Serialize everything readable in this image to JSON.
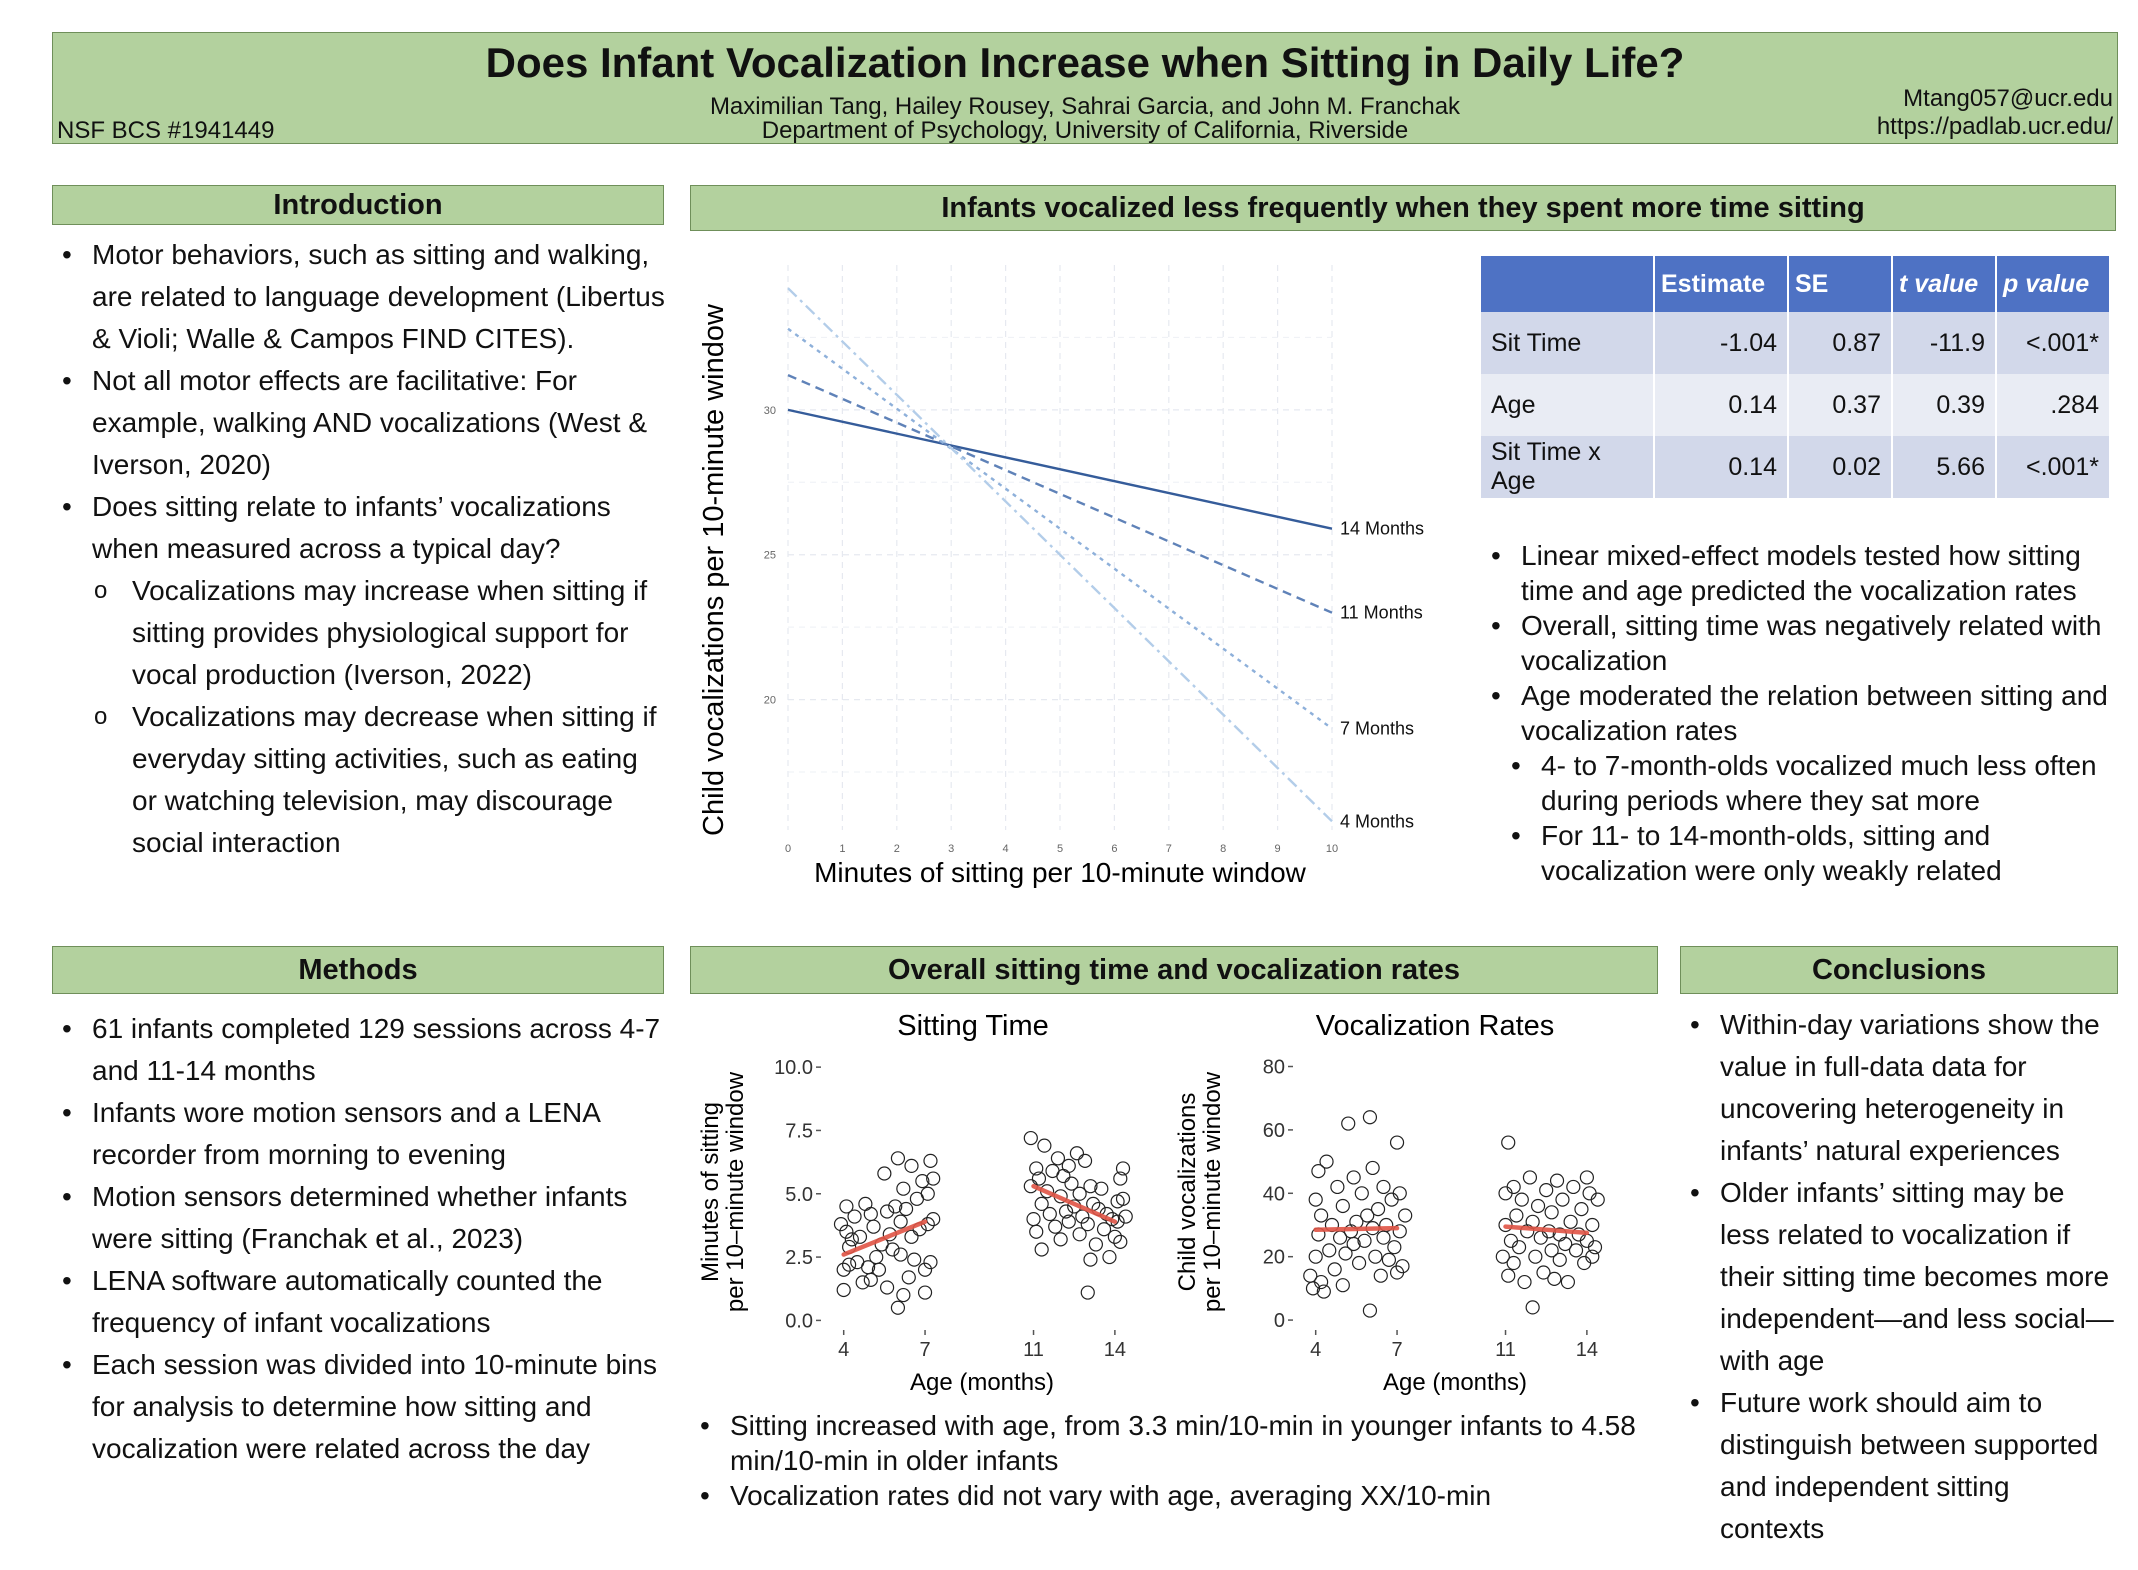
{
  "banner": {
    "title": "Does Infant Vocalization Increase when Sitting in Daily Life?",
    "authors": "Maximilian Tang, Hailey Rousey, Sahrai Garcia, and John M. Franchak",
    "affiliation": "Department of Psychology, University of California, Riverside",
    "grant": "NSF BCS #1941449",
    "email": "Mtang057@ucr.edu",
    "url": "https://padlab.ucr.edu/"
  },
  "intro": {
    "heading": "Introduction",
    "bullets": [
      "Motor behaviors, such as sitting and walking, are related to language development (Libertus & Violi; Walle & Campos FIND CITES).",
      "Not all motor effects are facilitative: For example, walking AND vocalizations (West & Iverson, 2020)",
      "Does sitting relate to infants’ vocalizations when measured across a typical day?"
    ],
    "subbullets": [
      "Vocalizations may increase when sitting if sitting provides physiological support for vocal production (Iverson, 2022)",
      "Vocalizations may decrease when sitting if everyday sitting activities, such as eating or watching television, may discourage social interaction"
    ]
  },
  "methods": {
    "heading": "Methods",
    "bullets": [
      "61 infants completed 129 sessions across 4-7 and 11-14 months",
      "Infants wore motion sensors and a LENA recorder from morning to evening",
      "Motion sensors determined whether infants were sitting (Franchak et al., 2023)",
      "LENA software automatically counted the frequency of infant vocalizations",
      "Each session was divided into 10-minute bins for analysis to determine how sitting and vocalization were related across the day"
    ]
  },
  "results1": {
    "heading": "Infants vocalized less frequently when they spent more time sitting",
    "table": {
      "headers": [
        "",
        "Estimate",
        "SE",
        "t value",
        "p value"
      ],
      "rows": [
        [
          "Sit Time",
          "-1.04",
          "0.87",
          "-11.9",
          "<.001*"
        ],
        [
          "Age",
          "0.14",
          "0.37",
          "0.39",
          ".284"
        ],
        [
          "Sit Time x Age",
          "0.14",
          "0.02",
          "5.66",
          "<.001*"
        ]
      ]
    },
    "bullets": [
      "Linear mixed-effect models tested how sitting time and age predicted the vocalization rates",
      "Overall, sitting time was negatively related with vocalization",
      "Age moderated the relation between sitting and vocalization rates"
    ],
    "subbullets": [
      "4- to 7-month-olds vocalized much less often during periods where they sat more",
      "For 11- to 14-month-olds, sitting and vocalization were only weakly related"
    ]
  },
  "results2": {
    "heading": "Overall sitting time and vocalization rates",
    "bullets": [
      "Sitting increased with age, from 3.3 min/10-min in younger infants to 4.58 min/10-min in older infants",
      "Vocalization rates did not vary with age, averaging XX/10-min"
    ]
  },
  "conclusions": {
    "heading": "Conclusions",
    "bullets": [
      "Within-day variations show the value in full-data data for uncovering heterogeneity in infants’ natural experiences",
      "Older infants’ sitting may be less related to vocalization if their sitting time becomes more independent—and less social—with age",
      "Future work should aim to distinguish between supported and independent sitting contexts"
    ]
  },
  "chart_data": [
    {
      "type": "line",
      "title": "",
      "xlabel": "Minutes of sitting per 10-minute window",
      "ylabel": "Child vocalizations per 10-minute window",
      "xlim": [
        0,
        10
      ],
      "ylim": [
        15.5,
        35
      ],
      "xticks": [
        0,
        1,
        2,
        3,
        4,
        5,
        6,
        7,
        8,
        9,
        10
      ],
      "yticks": [
        20,
        25,
        30
      ],
      "grid": true,
      "series": [
        {
          "name": "14 Months",
          "x": [
            0,
            10
          ],
          "y": [
            30.0,
            25.9
          ],
          "color": "#355c9a",
          "dash": ""
        },
        {
          "name": "11 Months",
          "x": [
            0,
            10
          ],
          "y": [
            31.2,
            23.0
          ],
          "color": "#5f82b8",
          "dash": "9,6"
        },
        {
          "name": "7 Months",
          "x": [
            0,
            10
          ],
          "y": [
            32.8,
            19.0
          ],
          "color": "#8eb0da",
          "dash": "4,5"
        },
        {
          "name": "4 Months",
          "x": [
            0,
            10
          ],
          "y": [
            34.2,
            15.8
          ],
          "color": "#b3cde9",
          "dash": "12,5,3,5"
        }
      ]
    },
    {
      "type": "scatter",
      "title": "Sitting Time",
      "xlabel": "Age (months)",
      "ylabel": "Minutes of sitting per 10–minute window",
      "ylabel_lines": [
        "Minutes of sitting",
        "per 10–minute window"
      ],
      "xlim": [
        3.2,
        15.0
      ],
      "ylim": [
        -0.3,
        10.4
      ],
      "xticks": [
        4,
        7,
        11,
        14
      ],
      "yticks": [
        0.0,
        2.5,
        5.0,
        7.5,
        10.0
      ],
      "ytick_labels": [
        "0.0",
        "2.5",
        "5.0",
        "7.5",
        "10.0"
      ],
      "trend": [
        {
          "x": [
            4,
            7
          ],
          "y": [
            2.6,
            3.9
          ]
        },
        {
          "x": [
            11,
            14
          ],
          "y": [
            5.3,
            3.9
          ]
        }
      ],
      "points": [
        [
          3.9,
          3.8
        ],
        [
          4.0,
          1.2
        ],
        [
          4.0,
          2.0
        ],
        [
          4.1,
          3.5
        ],
        [
          4.1,
          4.5
        ],
        [
          4.2,
          2.9
        ],
        [
          4.2,
          2.2
        ],
        [
          4.3,
          3.2
        ],
        [
          4.4,
          4.1
        ],
        [
          4.5,
          2.3
        ],
        [
          4.6,
          3.3
        ],
        [
          4.7,
          1.5
        ],
        [
          4.8,
          4.6
        ],
        [
          4.9,
          2.1
        ],
        [
          5.0,
          4.2
        ],
        [
          5.0,
          1.6
        ],
        [
          5.1,
          3.7
        ],
        [
          5.2,
          2.5
        ],
        [
          5.3,
          2.0
        ],
        [
          5.4,
          3.0
        ],
        [
          5.5,
          5.8
        ],
        [
          5.6,
          4.3
        ],
        [
          5.6,
          1.3
        ],
        [
          5.7,
          3.4
        ],
        [
          5.8,
          2.8
        ],
        [
          5.9,
          4.5
        ],
        [
          6.0,
          6.4
        ],
        [
          6.0,
          0.5
        ],
        [
          6.1,
          3.9
        ],
        [
          6.1,
          2.6
        ],
        [
          6.2,
          5.2
        ],
        [
          6.2,
          1.0
        ],
        [
          6.3,
          4.4
        ],
        [
          6.4,
          1.7
        ],
        [
          6.5,
          3.3
        ],
        [
          6.5,
          6.1
        ],
        [
          6.6,
          2.4
        ],
        [
          6.7,
          4.8
        ],
        [
          6.8,
          3.6
        ],
        [
          6.9,
          5.5
        ],
        [
          7.0,
          1.1
        ],
        [
          7.0,
          2.0
        ],
        [
          7.1,
          5.0
        ],
        [
          7.1,
          3.8
        ],
        [
          7.2,
          6.3
        ],
        [
          7.2,
          2.3
        ],
        [
          7.3,
          4.0
        ],
        [
          7.3,
          5.6
        ],
        [
          10.9,
          7.2
        ],
        [
          10.9,
          5.3
        ],
        [
          11.0,
          4.0
        ],
        [
          11.1,
          6.0
        ],
        [
          11.1,
          3.5
        ],
        [
          11.2,
          5.6
        ],
        [
          11.3,
          4.6
        ],
        [
          11.3,
          2.8
        ],
        [
          11.4,
          6.9
        ],
        [
          11.5,
          5.1
        ],
        [
          11.6,
          4.2
        ],
        [
          11.7,
          5.9
        ],
        [
          11.8,
          3.7
        ],
        [
          11.9,
          6.4
        ],
        [
          12.0,
          4.9
        ],
        [
          12.0,
          3.2
        ],
        [
          12.1,
          5.7
        ],
        [
          12.2,
          4.3
        ],
        [
          12.3,
          6.1
        ],
        [
          12.3,
          3.9
        ],
        [
          12.4,
          5.4
        ],
        [
          12.5,
          4.5
        ],
        [
          12.6,
          6.6
        ],
        [
          12.7,
          3.4
        ],
        [
          12.7,
          5.0
        ],
        [
          12.8,
          4.1
        ],
        [
          12.9,
          6.3
        ],
        [
          13.0,
          1.1
        ],
        [
          13.0,
          3.8
        ],
        [
          13.1,
          2.4
        ],
        [
          13.1,
          5.3
        ],
        [
          13.2,
          4.6
        ],
        [
          13.3,
          3.0
        ],
        [
          13.4,
          4.4
        ],
        [
          13.5,
          5.2
        ],
        [
          13.6,
          3.6
        ],
        [
          13.7,
          4.2
        ],
        [
          13.8,
          2.5
        ],
        [
          13.9,
          4.0
        ],
        [
          14.0,
          3.3
        ],
        [
          14.1,
          4.7
        ],
        [
          14.1,
          3.9
        ],
        [
          14.2,
          5.6
        ],
        [
          14.2,
          3.1
        ],
        [
          14.3,
          4.8
        ],
        [
          14.3,
          6.0
        ],
        [
          14.4,
          4.1
        ]
      ]
    },
    {
      "type": "scatter",
      "title": "Vocalization Rates",
      "xlabel": "Age (months)",
      "ylabel": "Child vocalizations per 10–minute window",
      "ylabel_lines": [
        "Child vocalizations",
        "per 10–minute window"
      ],
      "xlim": [
        3.2,
        15.0
      ],
      "ylim": [
        -2.5,
        83
      ],
      "xticks": [
        4,
        7,
        11,
        14
      ],
      "yticks": [
        0,
        20,
        40,
        60,
        80
      ],
      "ytick_labels": [
        "0",
        "20",
        "40",
        "60",
        "80"
      ],
      "trend": [
        {
          "x": [
            4,
            7
          ],
          "y": [
            28.5,
            29.0
          ]
        },
        {
          "x": [
            11,
            14
          ],
          "y": [
            29.5,
            27.5
          ]
        }
      ],
      "points": [
        [
          3.8,
          14
        ],
        [
          3.9,
          10
        ],
        [
          4.0,
          38
        ],
        [
          4.0,
          20
        ],
        [
          4.1,
          47
        ],
        [
          4.1,
          27
        ],
        [
          4.2,
          12
        ],
        [
          4.2,
          33
        ],
        [
          4.3,
          9
        ],
        [
          4.4,
          50
        ],
        [
          4.5,
          22
        ],
        [
          4.6,
          30
        ],
        [
          4.7,
          16
        ],
        [
          4.8,
          42
        ],
        [
          4.9,
          26
        ],
        [
          5.0,
          11
        ],
        [
          5.0,
          36
        ],
        [
          5.1,
          21
        ],
        [
          5.2,
          62
        ],
        [
          5.3,
          28
        ],
        [
          5.4,
          45
        ],
        [
          5.4,
          24
        ],
        [
          5.5,
          31
        ],
        [
          5.6,
          18
        ],
        [
          5.7,
          40
        ],
        [
          5.8,
          25
        ],
        [
          5.9,
          33
        ],
        [
          6.0,
          3
        ],
        [
          6.0,
          64
        ],
        [
          6.1,
          29
        ],
        [
          6.1,
          48
        ],
        [
          6.2,
          20
        ],
        [
          6.3,
          35
        ],
        [
          6.4,
          14
        ],
        [
          6.5,
          26
        ],
        [
          6.5,
          42
        ],
        [
          6.6,
          30
        ],
        [
          6.7,
          19
        ],
        [
          6.8,
          38
        ],
        [
          6.9,
          23
        ],
        [
          7.0,
          56
        ],
        [
          7.0,
          15
        ],
        [
          7.1,
          40
        ],
        [
          7.1,
          28
        ],
        [
          7.2,
          17
        ],
        [
          7.3,
          33
        ],
        [
          10.9,
          20
        ],
        [
          11.0,
          40
        ],
        [
          11.0,
          30
        ],
        [
          11.1,
          56
        ],
        [
          11.1,
          14
        ],
        [
          11.2,
          25
        ],
        [
          11.3,
          42
        ],
        [
          11.3,
          18
        ],
        [
          11.4,
          33
        ],
        [
          11.5,
          23
        ],
        [
          11.6,
          38
        ],
        [
          11.7,
          12
        ],
        [
          11.8,
          28
        ],
        [
          11.9,
          45
        ],
        [
          12.0,
          4
        ],
        [
          12.0,
          31
        ],
        [
          12.1,
          20
        ],
        [
          12.2,
          36
        ],
        [
          12.3,
          26
        ],
        [
          12.4,
          15
        ],
        [
          12.5,
          41
        ],
        [
          12.6,
          28
        ],
        [
          12.7,
          22
        ],
        [
          12.7,
          34
        ],
        [
          12.8,
          13
        ],
        [
          12.9,
          44
        ],
        [
          13.0,
          27
        ],
        [
          13.0,
          19
        ],
        [
          13.1,
          38
        ],
        [
          13.2,
          24
        ],
        [
          13.3,
          12
        ],
        [
          13.4,
          31
        ],
        [
          13.5,
          42
        ],
        [
          13.6,
          22
        ],
        [
          13.7,
          27
        ],
        [
          13.8,
          35
        ],
        [
          13.9,
          18
        ],
        [
          14.0,
          45
        ],
        [
          14.0,
          25
        ],
        [
          14.1,
          40
        ],
        [
          14.2,
          20
        ],
        [
          14.2,
          30
        ],
        [
          14.3,
          23
        ],
        [
          14.4,
          38
        ]
      ]
    }
  ]
}
